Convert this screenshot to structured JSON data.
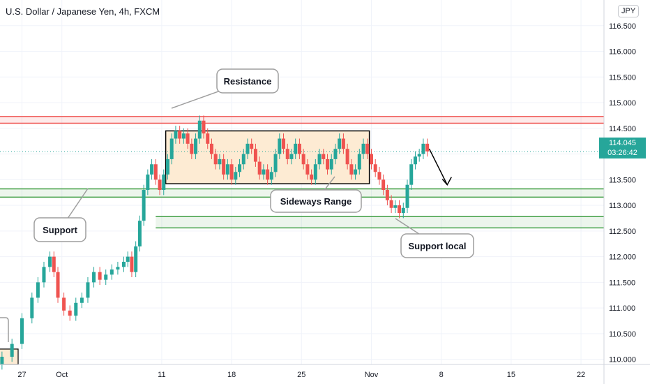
{
  "header": {
    "title": "U.S. Dollar / Japanese Yen, 4h, FXCM",
    "currency_badge": "JPY",
    "last_price": "114.045",
    "countdown": "03:26:42"
  },
  "colors": {
    "up": "#26a69a",
    "down": "#ef5350",
    "resistance": "#ef5350",
    "support": "#43a047",
    "range_fill": "#fdebd3",
    "grid": "#f0f3fa",
    "axis_text": "#131722"
  },
  "chart_data": {
    "type": "candlestick",
    "symbol": "USDJPY",
    "timeframe": "4h",
    "ylim": [
      109.9,
      117.0
    ],
    "y_ticks": [
      110.0,
      110.5,
      111.0,
      111.5,
      112.0,
      112.5,
      113.0,
      113.5,
      114.0,
      114.5,
      115.0,
      115.5,
      116.0,
      116.5
    ],
    "x_ticks": [
      {
        "label": "27",
        "day": 0
      },
      {
        "label": "Oct",
        "day": 4
      },
      {
        "label": "11",
        "day": 14
      },
      {
        "label": "18",
        "day": 21
      },
      {
        "label": "25",
        "day": 28
      },
      {
        "label": "Nov",
        "day": 35
      },
      {
        "label": "8",
        "day": 42
      },
      {
        "label": "15",
        "day": 49
      },
      {
        "label": "22",
        "day": 56
      }
    ],
    "x_range_days": [
      -2.2,
      58.3
    ],
    "series_close": [
      [
        -2.0,
        110.05
      ],
      [
        -1.0,
        110.3
      ],
      [
        0.0,
        110.8
      ],
      [
        1.0,
        111.2
      ],
      [
        1.6,
        111.5
      ],
      [
        2.2,
        111.8
      ],
      [
        2.8,
        112.0
      ],
      [
        3.2,
        111.7
      ],
      [
        3.6,
        111.2
      ],
      [
        4.2,
        110.95
      ],
      [
        4.8,
        110.85
      ],
      [
        5.4,
        111.1
      ],
      [
        6.0,
        111.2
      ],
      [
        6.6,
        111.5
      ],
      [
        7.2,
        111.7
      ],
      [
        7.8,
        111.55
      ],
      [
        8.4,
        111.65
      ],
      [
        9.0,
        111.75
      ],
      [
        9.6,
        111.8
      ],
      [
        10.2,
        111.9
      ],
      [
        10.6,
        112.0
      ],
      [
        11.0,
        111.7
      ],
      [
        11.4,
        112.2
      ],
      [
        11.8,
        112.7
      ],
      [
        12.2,
        113.3
      ],
      [
        12.6,
        113.6
      ],
      [
        13.0,
        113.8
      ],
      [
        13.4,
        113.5
      ],
      [
        13.8,
        113.3
      ],
      [
        14.2,
        113.6
      ],
      [
        14.6,
        113.9
      ],
      [
        15.0,
        114.3
      ],
      [
        15.4,
        114.45
      ],
      [
        15.8,
        114.3
      ],
      [
        16.2,
        114.4
      ],
      [
        16.6,
        114.2
      ],
      [
        17.0,
        114.0
      ],
      [
        17.4,
        114.3
      ],
      [
        17.8,
        114.65
      ],
      [
        18.2,
        114.4
      ],
      [
        18.6,
        114.2
      ],
      [
        19.0,
        114.0
      ],
      [
        19.4,
        113.8
      ],
      [
        19.8,
        113.9
      ],
      [
        20.2,
        113.6
      ],
      [
        20.6,
        113.8
      ],
      [
        21.0,
        113.5
      ],
      [
        21.4,
        113.65
      ],
      [
        21.8,
        113.8
      ],
      [
        22.2,
        114.0
      ],
      [
        22.6,
        114.2
      ],
      [
        23.0,
        114.1
      ],
      [
        23.4,
        113.85
      ],
      [
        23.8,
        113.6
      ],
      [
        24.2,
        113.7
      ],
      [
        24.6,
        113.5
      ],
      [
        25.0,
        113.65
      ],
      [
        25.4,
        114.0
      ],
      [
        25.8,
        114.3
      ],
      [
        26.2,
        114.1
      ],
      [
        26.6,
        113.9
      ],
      [
        27.0,
        114.0
      ],
      [
        27.4,
        114.2
      ],
      [
        27.8,
        114.0
      ],
      [
        28.2,
        113.8
      ],
      [
        28.6,
        113.6
      ],
      [
        29.0,
        113.5
      ],
      [
        29.4,
        113.8
      ],
      [
        29.8,
        114.0
      ],
      [
        30.2,
        113.9
      ],
      [
        30.6,
        113.7
      ],
      [
        31.0,
        113.9
      ],
      [
        31.4,
        114.1
      ],
      [
        31.8,
        114.3
      ],
      [
        32.2,
        114.1
      ],
      [
        32.6,
        113.8
      ],
      [
        33.0,
        113.6
      ],
      [
        33.4,
        113.7
      ],
      [
        33.8,
        114.0
      ],
      [
        34.2,
        114.2
      ],
      [
        34.6,
        114.0
      ],
      [
        35.0,
        113.8
      ],
      [
        35.4,
        113.65
      ],
      [
        35.8,
        113.5
      ],
      [
        36.2,
        113.3
      ],
      [
        36.6,
        113.1
      ],
      [
        37.0,
        112.95
      ],
      [
        37.4,
        113.0
      ],
      [
        37.8,
        112.85
      ],
      [
        38.2,
        112.95
      ],
      [
        38.6,
        113.4
      ],
      [
        39.0,
        113.8
      ],
      [
        39.4,
        113.95
      ],
      [
        39.8,
        114.0
      ],
      [
        40.2,
        114.2
      ],
      [
        40.6,
        114.05
      ]
    ],
    "annotations": [
      {
        "type": "zone",
        "name": "resistance",
        "y_from": 114.6,
        "y_to": 114.73
      },
      {
        "type": "zone",
        "name": "support",
        "y_from": 113.16,
        "y_to": 113.32
      },
      {
        "type": "zone",
        "name": "support-local",
        "y_from": 112.56,
        "y_to": 112.78
      },
      {
        "type": "box",
        "name": "sideways-range",
        "y_from": 113.42,
        "y_to": 114.45,
        "x_from_day": 14.4,
        "x_to_day": 34.8
      }
    ],
    "labels": {
      "resistance": "Resistance",
      "support": "Support",
      "sideways": "Sideways Range",
      "support_local": "Support local"
    }
  }
}
